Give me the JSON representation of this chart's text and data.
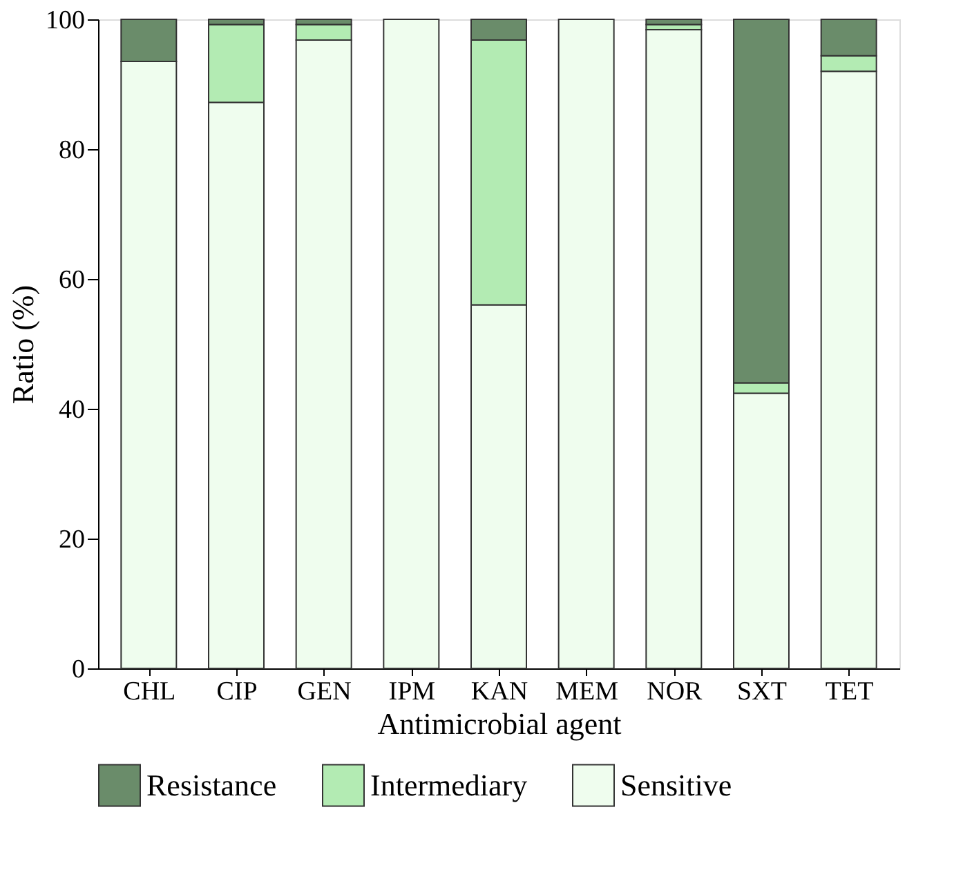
{
  "chart_data": {
    "type": "bar",
    "stacked": true,
    "xlabel": "Antimicrobial agent",
    "ylabel": "Ratio (%)",
    "categories": [
      "CHL",
      "CIP",
      "GEN",
      "IPM",
      "KAN",
      "MEM",
      "NOR",
      "SXT",
      "TET"
    ],
    "series": [
      {
        "name": "Sensitive",
        "color": "#effdee",
        "values": [
          93.5,
          87.2,
          96.8,
          100,
          56,
          100,
          98.4,
          42.4,
          92
        ]
      },
      {
        "name": "Intermediary",
        "color": "#b3ebb3",
        "values": [
          null,
          12,
          2.4,
          null,
          40.8,
          null,
          0.8,
          1.6,
          2.4
        ]
      },
      {
        "name": "Resistance",
        "color": "#6a8c6a",
        "values": [
          6.5,
          0.8,
          0.8,
          null,
          3.2,
          null,
          0.8,
          56,
          5.6
        ]
      }
    ],
    "ylim": [
      0,
      100
    ],
    "yticks": [
      0,
      20,
      40,
      60,
      80,
      100
    ],
    "grid": false,
    "legend": "bottom"
  }
}
